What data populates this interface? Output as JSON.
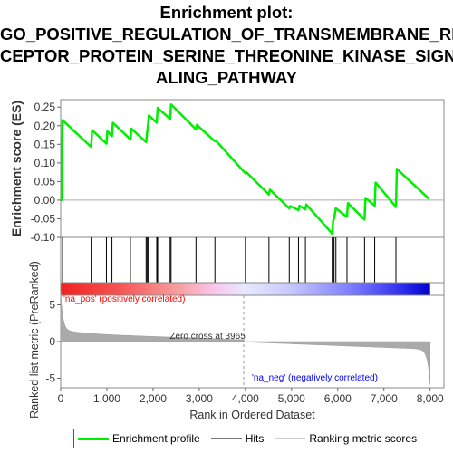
{
  "chart_data": {
    "type": "line",
    "title_lines": [
      "Enrichment plot:",
      "GO_POSITIVE_REGULATION_OF_TRANSMEMBRANE_RE",
      "CEPTOR_PROTEIN_SERINE_THREONINE_KINASE_SIGN",
      "ALING_PATHWAY"
    ],
    "es_panel": {
      "ylabel": "Enrichment score (ES)",
      "ylim": [
        -0.1,
        0.27
      ],
      "yticks": [
        -0.1,
        -0.05,
        0.0,
        0.05,
        0.1,
        0.15,
        0.2,
        0.25
      ],
      "ytick_labels": [
        "-0.10",
        "-0.05",
        "0.00",
        "0.05",
        "0.10",
        "0.15",
        "0.20",
        "0.25"
      ],
      "color": "#00ee00",
      "points": [
        [
          0,
          0.0
        ],
        [
          20,
          0.0
        ],
        [
          40,
          0.215
        ],
        [
          660,
          0.143
        ],
        [
          680,
          0.188
        ],
        [
          990,
          0.152
        ],
        [
          1010,
          0.185
        ],
        [
          1110,
          0.172
        ],
        [
          1130,
          0.208
        ],
        [
          1510,
          0.163
        ],
        [
          1530,
          0.192
        ],
        [
          1850,
          0.156
        ],
        [
          1870,
          0.18
        ],
        [
          1890,
          0.2
        ],
        [
          1910,
          0.228
        ],
        [
          2080,
          0.208
        ],
        [
          2100,
          0.248
        ],
        [
          2370,
          0.218
        ],
        [
          2390,
          0.257
        ],
        [
          2930,
          0.19
        ],
        [
          2950,
          0.202
        ],
        [
          3340,
          0.158
        ],
        [
          3360,
          0.16
        ],
        [
          4000,
          0.072
        ],
        [
          4020,
          0.075
        ],
        [
          4510,
          0.015
        ],
        [
          4530,
          0.028
        ],
        [
          4950,
          -0.022
        ],
        [
          4970,
          -0.016
        ],
        [
          5150,
          -0.027
        ],
        [
          5170,
          -0.015
        ],
        [
          5300,
          -0.025
        ],
        [
          5320,
          -0.012
        ],
        [
          5880,
          -0.09
        ],
        [
          5900,
          -0.055
        ],
        [
          5920,
          -0.05
        ],
        [
          5960,
          -0.022
        ],
        [
          6200,
          -0.045
        ],
        [
          6220,
          -0.008
        ],
        [
          6580,
          -0.052
        ],
        [
          6600,
          0.006
        ],
        [
          6800,
          -0.015
        ],
        [
          6820,
          0.047
        ],
        [
          7260,
          -0.018
        ],
        [
          7280,
          0.084
        ],
        [
          7980,
          0.003
        ]
      ]
    },
    "hits": [
      40,
      660,
      990,
      1110,
      1510,
      1850,
      1870,
      1890,
      1910,
      2080,
      2100,
      2370,
      2390,
      2930,
      3340,
      4000,
      4510,
      4950,
      5150,
      5300,
      5880,
      5900,
      5920,
      5960,
      6200,
      6580,
      6800,
      7260
    ],
    "metric_panel": {
      "ylabel": "Ranked list metric (PreRanked)",
      "ylim": [
        -6.3,
        6.3
      ],
      "yticks": [
        -5,
        0,
        5
      ],
      "ytick_labels": [
        "-5",
        "0",
        "5"
      ],
      "zero_cross_label": "Zero cross at 3965",
      "zero_cross": 3965,
      "pos_label": "'na_pos' (positively correlated)",
      "neg_label": "'na_neg' (negatively correlated)",
      "pos_color": "#ff0000",
      "neg_color": "#0000ff"
    },
    "xlabel": "Rank in Ordered Dataset",
    "xlim": [
      0,
      8300
    ],
    "xticks": [
      0,
      1000,
      2000,
      3000,
      4000,
      5000,
      6000,
      7000,
      8000
    ],
    "xtick_labels": [
      "0",
      "1,000",
      "2,000",
      "3,000",
      "4,000",
      "5,000",
      "6,000",
      "7,000",
      "8,000"
    ],
    "n_genes": 8000,
    "legend": [
      {
        "label": "Enrichment profile",
        "color": "#00ee00"
      },
      {
        "label": "Hits",
        "color": "#777777"
      },
      {
        "label": "Ranking metric scores",
        "color": "#cccccc"
      }
    ]
  }
}
